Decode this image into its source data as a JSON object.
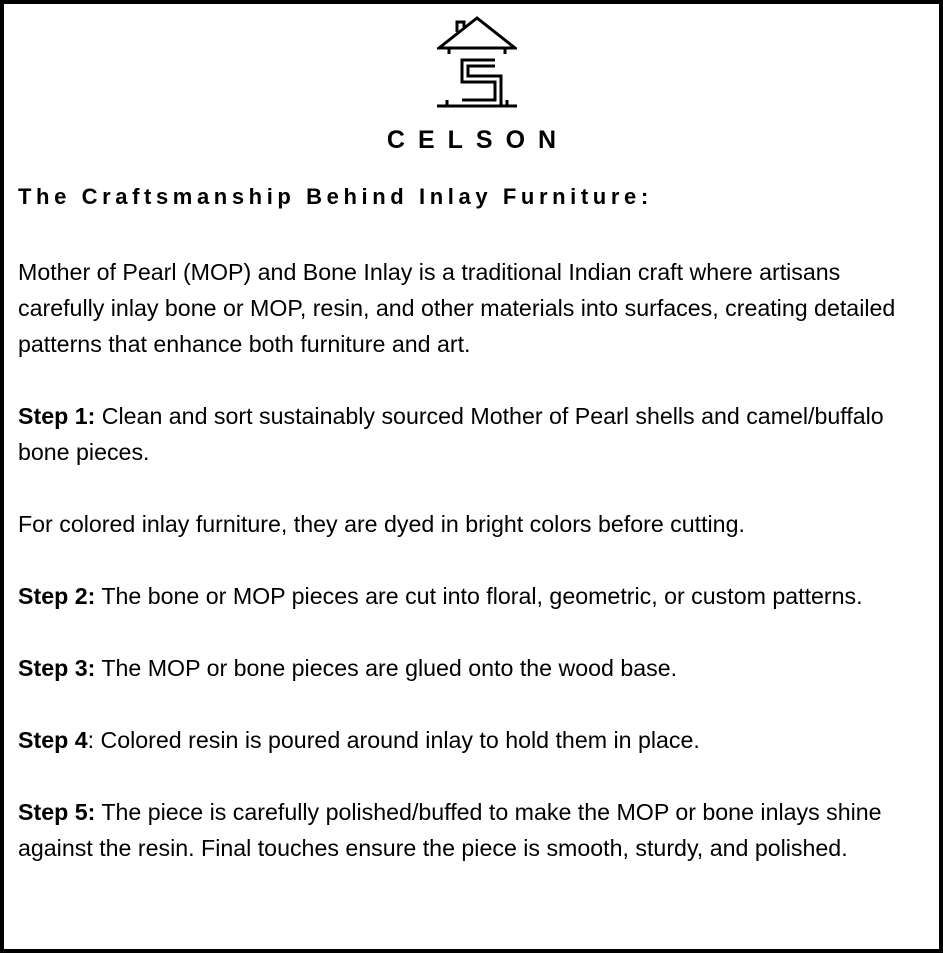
{
  "brand": {
    "name": "CELSON",
    "logo": "house-with-s-logo-icon"
  },
  "title": "The Craftsmanship Behind Inlay Furniture:",
  "intro": "Mother of Pearl (MOP) and Bone Inlay is a traditional Indian craft where artisans carefully inlay bone or MOP, resin, and other materials into surfaces, creating detailed patterns that enhance both furniture and art.",
  "steps": [
    {
      "label": "Step 1:",
      "text": " Clean and sort sustainably sourced Mother of Pearl shells and camel/buffalo bone pieces."
    },
    {
      "note": "For colored inlay furniture, they are dyed in bright colors before cutting."
    },
    {
      "label": "Step 2:",
      "text": " The bone or MOP pieces are cut into floral, geometric, or custom patterns."
    },
    {
      "label": "Step 3:",
      "text": " The MOP or bone pieces are glued onto the wood base."
    },
    {
      "label": "Step 4",
      "text": ": Colored resin is poured around inlay to hold them in place."
    },
    {
      "label": "Step 5:",
      "text": " The piece is carefully polished/buffed to make the MOP or bone inlays shine against the resin. Final touches ensure the piece is smooth, sturdy, and polished."
    }
  ]
}
